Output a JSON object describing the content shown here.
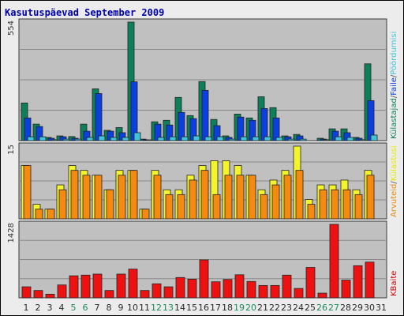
{
  "title": "Kasutuspäevad September 2009",
  "chart_data": [
    {
      "type": "bar",
      "panel": "top",
      "ymax_label": "554",
      "ylim": [
        0,
        554
      ],
      "side_labels": [
        {
          "text": "Külastajad",
          "color": "#0d7f5b"
        },
        {
          "text": "/",
          "color": "#555555"
        },
        {
          "text": "Faile",
          "color": "#0b3fe0"
        },
        {
          "text": "/",
          "color": "#555555"
        },
        {
          "text": "Pöördumisi",
          "color": "#41c4d8"
        }
      ],
      "x": [
        "1",
        "2",
        "3",
        "4",
        "5",
        "6",
        "7",
        "8",
        "9",
        "10",
        "11",
        "12",
        "13",
        "14",
        "15",
        "16",
        "17",
        "18",
        "19",
        "20",
        "21",
        "22",
        "23",
        "24",
        "25",
        "26",
        "27",
        "28",
        "29",
        "30",
        "31"
      ],
      "series": [
        {
          "name": "Pöördumisi",
          "color": "#0d7f5b",
          "values": [
            176,
            77,
            15,
            22,
            19,
            77,
            242,
            48,
            61,
            554,
            7,
            88,
            95,
            202,
            117,
            276,
            99,
            22,
            124,
            106,
            205,
            154,
            22,
            29,
            0,
            11,
            55,
            55,
            15,
            359,
            0
          ]
        },
        {
          "name": "Faile",
          "color": "#0b3fe0",
          "values": [
            106,
            66,
            11,
            18,
            11,
            44,
            220,
            44,
            37,
            275,
            4,
            77,
            73,
            132,
            103,
            235,
            70,
            15,
            110,
            95,
            150,
            106,
            18,
            22,
            0,
            7,
            44,
            37,
            11,
            187,
            0
          ]
        },
        {
          "name": "Külastajad",
          "color": "#41c4d8",
          "values": [
            18,
            18,
            4,
            7,
            7,
            15,
            22,
            15,
            15,
            37,
            2,
            15,
            18,
            18,
            22,
            18,
            18,
            7,
            18,
            18,
            18,
            15,
            7,
            7,
            0,
            4,
            18,
            15,
            4,
            26,
            0
          ]
        }
      ]
    },
    {
      "type": "bar",
      "panel": "middle",
      "ymax_label": "15",
      "ylim": [
        0,
        15
      ],
      "side_labels": [
        {
          "text": "Arvuteid",
          "color": "#e58a0c"
        },
        {
          "text": "/",
          "color": "#555555"
        },
        {
          "text": "Külastusi",
          "color": "#e8e800"
        }
      ],
      "series": [
        {
          "name": "Külastusi",
          "color": "#f4f42e",
          "values": [
            11,
            3,
            2,
            7,
            11,
            10,
            9,
            6,
            10,
            10,
            2,
            10,
            6,
            6,
            9,
            11,
            12,
            12,
            11,
            9,
            6,
            8,
            10,
            15,
            4,
            7,
            7,
            8,
            6,
            10,
            0
          ]
        },
        {
          "name": "Arvuteid",
          "color": "#f58a10",
          "values": [
            11,
            2,
            2,
            6,
            10,
            9,
            9,
            6,
            9,
            10,
            2,
            9,
            5,
            5,
            8,
            10,
            5,
            9,
            9,
            9,
            5,
            7,
            9,
            10,
            3,
            6,
            6,
            6,
            5,
            9,
            0
          ]
        }
      ]
    },
    {
      "type": "bar",
      "panel": "bottom",
      "ymax_label": "1428",
      "ylim": [
        0,
        1428
      ],
      "side_labels": [
        {
          "text": "KBaite",
          "color": "#dd0000"
        }
      ],
      "series": [
        {
          "name": "KBaite",
          "color": "#ee1111",
          "values": [
            214,
            143,
            71,
            250,
            428,
            441,
            461,
            143,
            461,
            559,
            143,
            273,
            214,
            395,
            363,
            737,
            312,
            357,
            448,
            318,
            240,
            240,
            441,
            182,
            591,
            91,
            1428,
            344,
            624,
            694,
            0
          ]
        }
      ]
    }
  ],
  "day_colors": {
    "weekday": "#2a2a2a",
    "weekend": "#1c8a5a"
  },
  "weekend_days": [
    5,
    6,
    12,
    13,
    19,
    20,
    26,
    27
  ]
}
